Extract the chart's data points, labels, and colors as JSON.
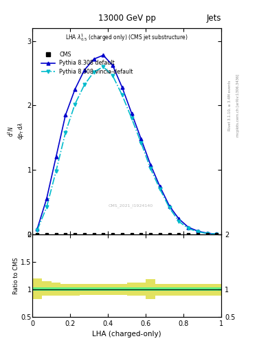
{
  "title": "13000 GeV pp",
  "title_right": "Jets",
  "xlabel": "LHA (charged-only)",
  "watermark": "CMS_2021_I1924140",
  "rivet_label": "Rivet 3.1.10, ≥ 3.4M events",
  "mcplots_label": "mcplots.cern.ch [arXiv:1306.3436]",
  "pythia_default_x": [
    0.025,
    0.075,
    0.125,
    0.175,
    0.225,
    0.275,
    0.325,
    0.375,
    0.425,
    0.475,
    0.525,
    0.575,
    0.625,
    0.675,
    0.725,
    0.775,
    0.825,
    0.875,
    0.925,
    0.975
  ],
  "pythia_default_y": [
    0.08,
    0.55,
    1.2,
    1.85,
    2.25,
    2.55,
    2.72,
    2.78,
    2.62,
    2.28,
    1.88,
    1.48,
    1.08,
    0.74,
    0.44,
    0.24,
    0.11,
    0.05,
    0.018,
    0.004
  ],
  "pythia_vincia_x": [
    0.025,
    0.075,
    0.125,
    0.175,
    0.225,
    0.275,
    0.325,
    0.375,
    0.425,
    0.475,
    0.525,
    0.575,
    0.625,
    0.675,
    0.725,
    0.775,
    0.825,
    0.875,
    0.925,
    0.975
  ],
  "pythia_vincia_y": [
    0.06,
    0.42,
    0.98,
    1.58,
    2.02,
    2.32,
    2.52,
    2.6,
    2.46,
    2.16,
    1.8,
    1.42,
    1.02,
    0.7,
    0.41,
    0.2,
    0.09,
    0.04,
    0.014,
    0.003
  ],
  "cms_x_pts": [
    0.025,
    0.075,
    0.125,
    0.175,
    0.225,
    0.275,
    0.325,
    0.375,
    0.425,
    0.475,
    0.525,
    0.575,
    0.625,
    0.675,
    0.725,
    0.775,
    0.825,
    0.875,
    0.925,
    0.975
  ],
  "bin_edges": [
    0.0,
    0.05,
    0.1,
    0.15,
    0.2,
    0.25,
    0.3,
    0.35,
    0.4,
    0.45,
    0.5,
    0.55,
    0.6,
    0.65,
    0.7,
    0.75,
    0.8,
    0.85,
    0.9,
    0.95,
    1.0
  ],
  "yellow_lo": [
    0.82,
    0.88,
    0.88,
    0.88,
    0.88,
    0.9,
    0.9,
    0.9,
    0.9,
    0.9,
    0.88,
    0.88,
    0.82,
    0.88,
    0.88,
    0.88,
    0.88,
    0.88,
    0.88,
    0.88
  ],
  "yellow_hi": [
    1.2,
    1.15,
    1.12,
    1.1,
    1.1,
    1.1,
    1.1,
    1.1,
    1.1,
    1.1,
    1.12,
    1.12,
    1.18,
    1.1,
    1.1,
    1.1,
    1.1,
    1.1,
    1.1,
    1.1
  ],
  "green_lo": [
    0.97,
    0.97,
    0.97,
    0.97,
    0.97,
    0.97,
    0.97,
    0.97,
    0.97,
    0.97,
    0.97,
    0.97,
    0.97,
    0.97,
    0.97,
    0.97,
    0.97,
    0.97,
    0.97,
    0.97
  ],
  "green_hi": [
    1.03,
    1.03,
    1.03,
    1.03,
    1.03,
    1.03,
    1.03,
    1.03,
    1.03,
    1.03,
    1.03,
    1.03,
    1.03,
    1.03,
    1.03,
    1.03,
    1.03,
    1.03,
    1.03,
    1.03
  ],
  "color_default": "#0000cc",
  "color_vincia": "#00bbcc",
  "color_cms": "#000000",
  "color_green": "#44ee88",
  "color_yellow": "#dddd44",
  "ylim_main": [
    0.0,
    3.2
  ],
  "ylim_ratio": [
    0.5,
    2.0
  ],
  "xlim": [
    0.0,
    1.0
  ],
  "yticks_main": [
    0,
    1,
    2,
    3
  ],
  "yticks_ratio": [
    0.5,
    1.0,
    1.5,
    2.0
  ],
  "xticks": [
    0.0,
    0.2,
    0.4,
    0.6,
    0.8,
    1.0
  ]
}
